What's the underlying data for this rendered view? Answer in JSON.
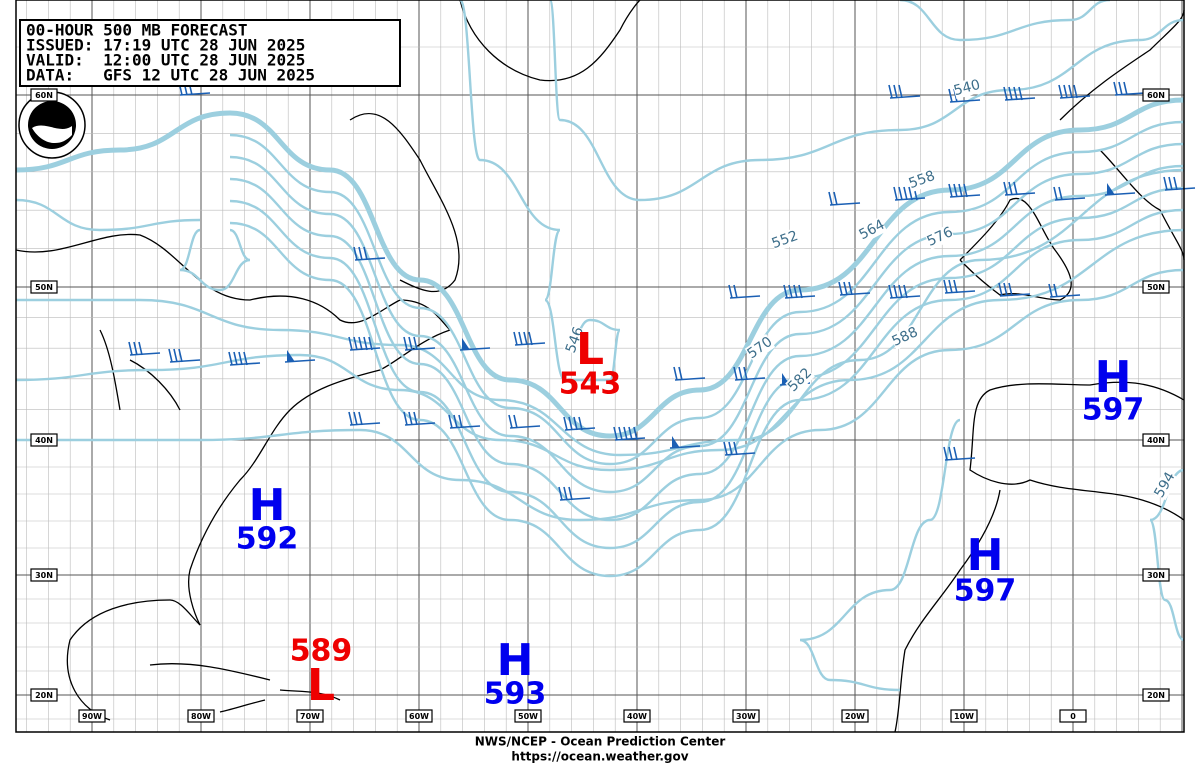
{
  "header": {
    "lines": [
      "00-HOUR 500 MB FORECAST",
      "ISSUED: 17:19 UTC 28 JUN 2025",
      "VALID:  12:00 UTC 28 JUN 2025",
      "DATA:   GFS 12 UTC 28 JUN 2025"
    ]
  },
  "centers": [
    {
      "symbol": "L",
      "value": 543
    },
    {
      "symbol": "H",
      "value": 592
    },
    {
      "symbol": "L",
      "value": 589
    },
    {
      "symbol": "H",
      "value": 593
    },
    {
      "symbol": "H",
      "value": 597
    },
    {
      "symbol": "H",
      "value": 597
    }
  ],
  "contour_labels": [
    540,
    546,
    552,
    558,
    564,
    570,
    576,
    582,
    588,
    594
  ],
  "lat_labels": [
    "60N",
    "50N",
    "40N",
    "30N",
    "20N"
  ],
  "lon_labels": [
    "90W",
    "80W",
    "70W",
    "60W",
    "50W",
    "40W",
    "30W",
    "20W",
    "10W",
    "0"
  ],
  "footer": {
    "line1": "NWS/NCEP - Ocean Prediction Center",
    "line2": "https://ocean.weather.gov"
  }
}
